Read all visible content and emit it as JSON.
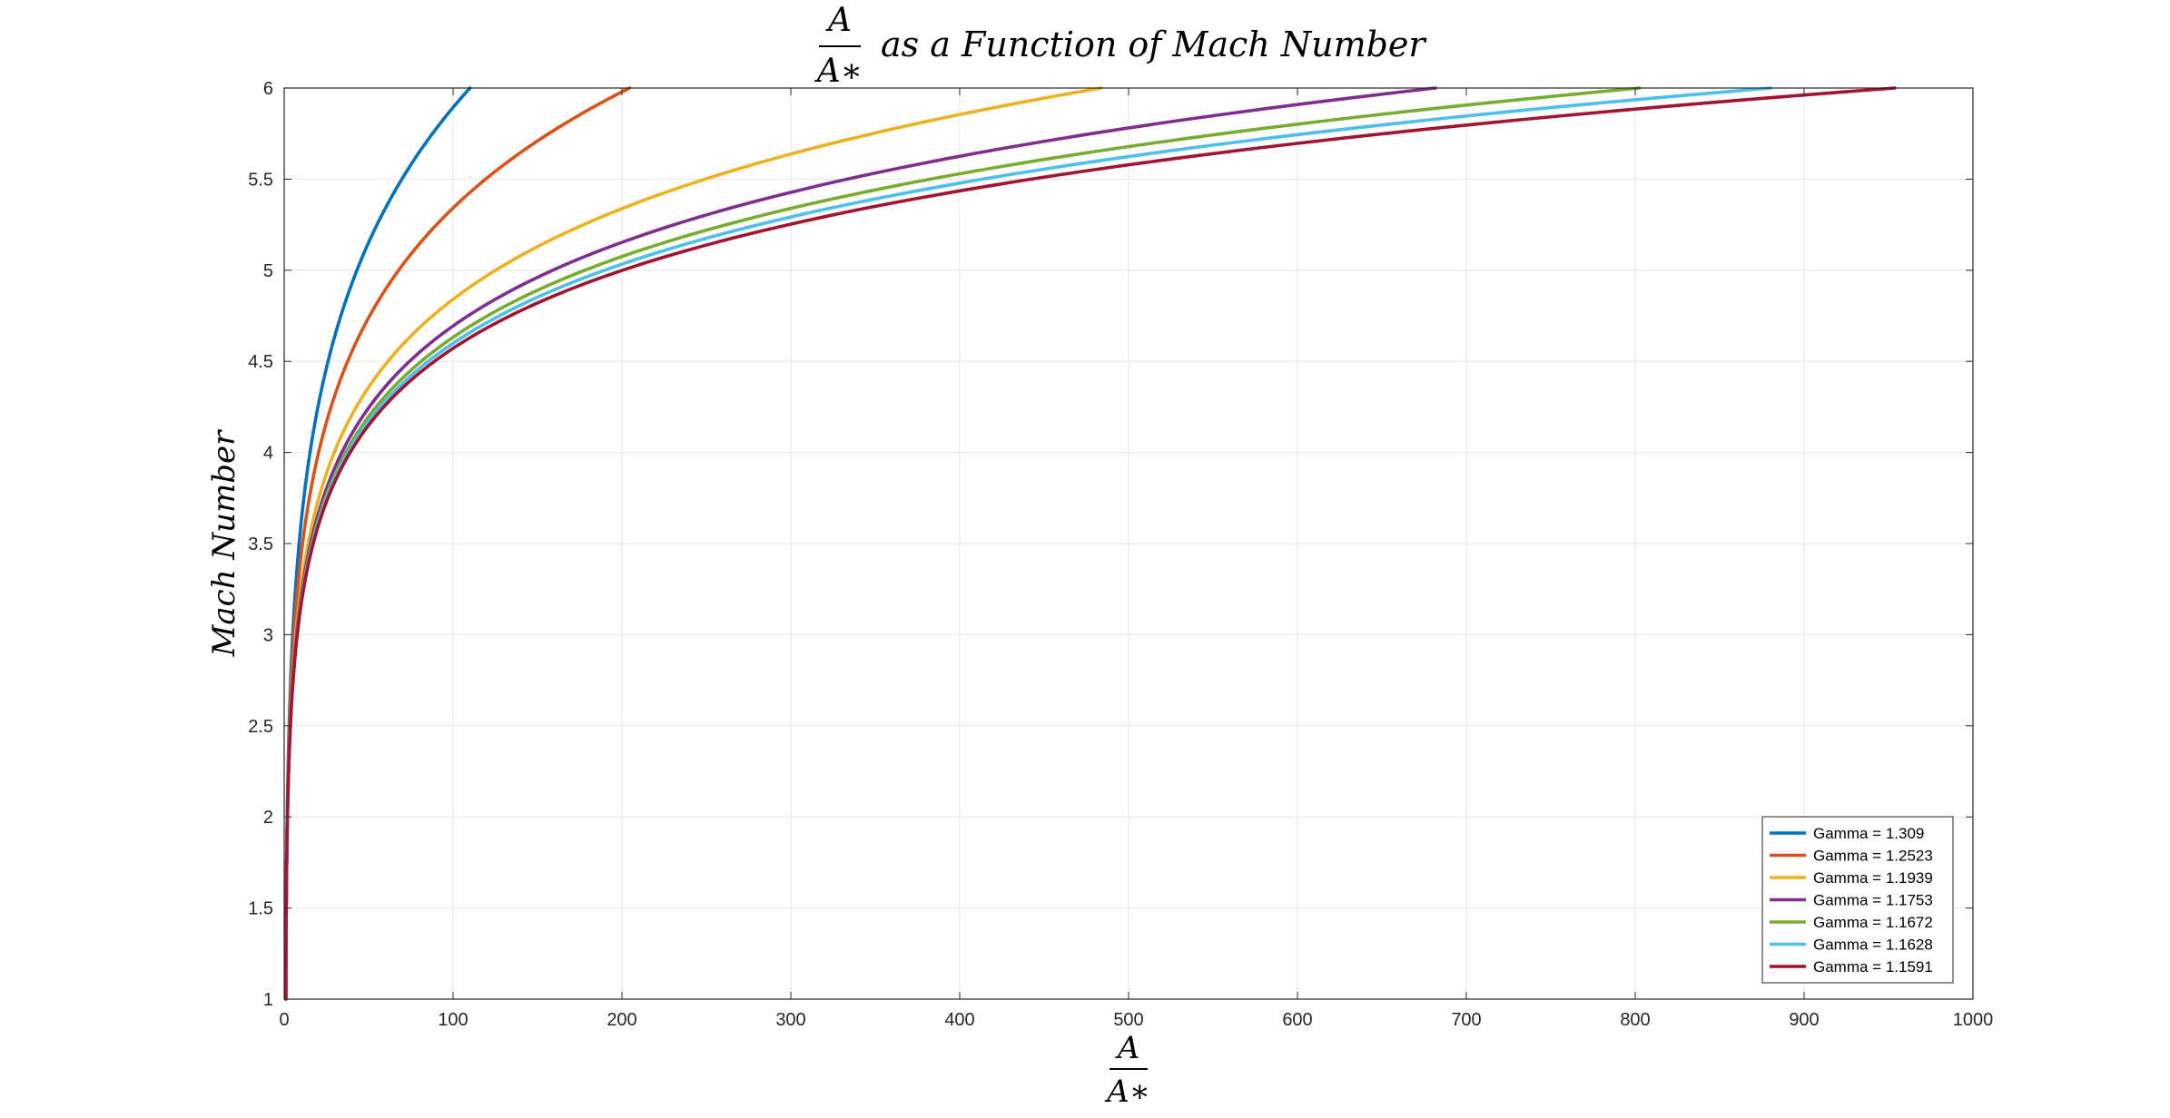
{
  "chart_data": {
    "type": "line",
    "title": {
      "fraction_numerator": "A",
      "fraction_denominator": "A∗",
      "text": "as a Function of Mach Number"
    },
    "xlabel": {
      "numerator": "A",
      "denominator": "A∗"
    },
    "ylabel": "Mach Number",
    "xlim": [
      0,
      1000
    ],
    "ylim": [
      1,
      6
    ],
    "xticks": [
      "0",
      "100",
      "200",
      "300",
      "400",
      "500",
      "600",
      "700",
      "800",
      "900",
      "1000"
    ],
    "yticks": [
      "1",
      "1.5",
      "2",
      "2.5",
      "3",
      "3.5",
      "4",
      "4.5",
      "5",
      "5.5",
      "6"
    ],
    "grid": true,
    "legend_position": "bottom-right",
    "mach_samples": [
      1,
      1.5,
      2,
      2.5,
      3,
      3.5,
      4,
      4.5,
      5,
      5.5,
      6
    ],
    "series": [
      {
        "name": "Gamma = 1.309",
        "gamma": 1.309,
        "color": "#0072BD"
      },
      {
        "name": "Gamma = 1.2523",
        "gamma": 1.2523,
        "color": "#D95319"
      },
      {
        "name": "Gamma = 1.1939",
        "gamma": 1.1939,
        "color": "#EDB120"
      },
      {
        "name": "Gamma = 1.1753",
        "gamma": 1.1753,
        "color": "#7E2F8E"
      },
      {
        "name": "Gamma = 1.1672",
        "gamma": 1.1672,
        "color": "#77AC30"
      },
      {
        "name": "Gamma = 1.1628",
        "gamma": 1.1628,
        "color": "#4DBEEE"
      },
      {
        "name": "Gamma = 1.1591",
        "gamma": 1.1591,
        "color": "#A2142F"
      }
    ]
  }
}
